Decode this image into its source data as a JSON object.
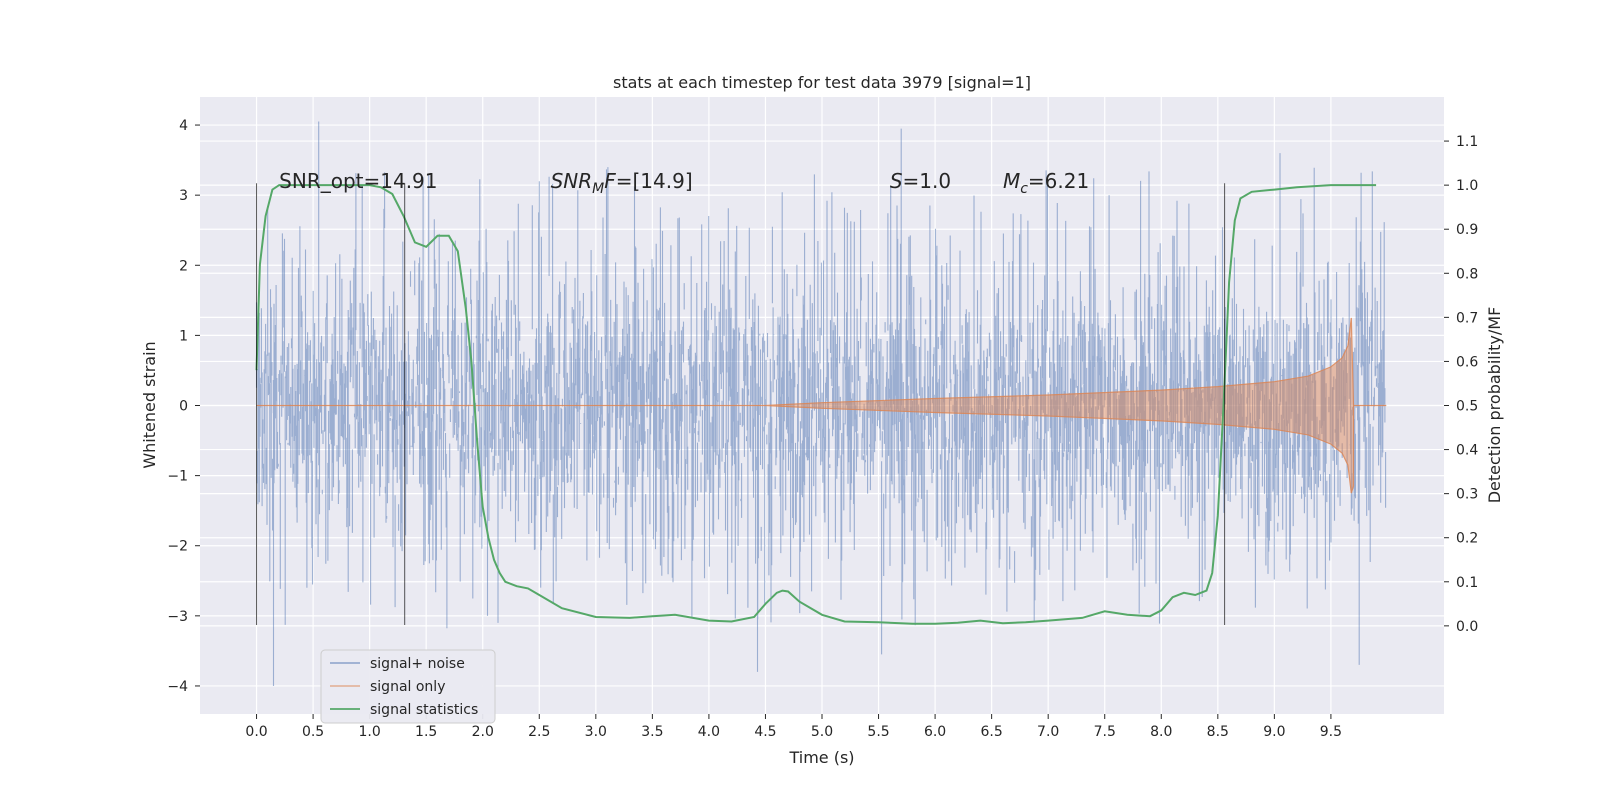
{
  "chart_data": {
    "type": "line",
    "title": "stats at each timestep for test data 3979 [signal=1]",
    "xlabel": "Time (s)",
    "ylabel": "Whitened strain",
    "y2label": "Detection probability/MF",
    "xlim": [
      -0.5,
      10.5
    ],
    "ylim": [
      -4.4,
      4.4
    ],
    "y2lim": [
      -0.2,
      1.2
    ],
    "x_ticks": [
      0.0,
      0.5,
      1.0,
      1.5,
      2.0,
      2.5,
      3.0,
      3.5,
      4.0,
      4.5,
      5.0,
      5.5,
      6.0,
      6.5,
      7.0,
      7.5,
      8.0,
      8.5,
      9.0,
      9.5
    ],
    "x_tick_labels": [
      "0.0",
      "0.5",
      "1.0",
      "1.5",
      "2.0",
      "2.5",
      "3.0",
      "3.5",
      "4.0",
      "4.5",
      "5.0",
      "5.5",
      "6.0",
      "6.5",
      "7.0",
      "7.5",
      "8.0",
      "8.5",
      "9.0",
      "9.5"
    ],
    "y_ticks": [
      4,
      3,
      2,
      1,
      0,
      -1,
      -2,
      -3,
      -4
    ],
    "y_tick_labels": [
      "4",
      "3",
      "2",
      "1",
      "0",
      "−1",
      "−2",
      "−3",
      "−4"
    ],
    "y2_ticks": [
      1.1,
      1.0,
      0.9,
      0.8,
      0.7,
      0.6,
      0.5,
      0.4,
      0.3,
      0.2,
      0.1,
      0.0
    ],
    "y2_tick_labels": [
      "1.1",
      "1.0",
      "0.9",
      "0.8",
      "0.7",
      "0.6",
      "0.5",
      "0.4",
      "0.3",
      "0.2",
      "0.1",
      "0.0"
    ],
    "grid": true,
    "legend_position": "lower-left",
    "annotations": [
      {
        "text": "SNR_opt=14.91",
        "x": 0.2,
        "y": 3.2
      },
      {
        "text": "SNR_MF=[14.9]",
        "x": 2.6,
        "y": 3.2
      },
      {
        "text": "S=1.0",
        "x": 5.6,
        "y": 3.2
      },
      {
        "text": "M_c=6.21",
        "x": 6.6,
        "y": 3.2
      }
    ],
    "vertical_markers": [
      {
        "x": 0.0,
        "y_range": [
          -3.13,
          3.17
        ]
      },
      {
        "x": 1.31,
        "y_range": [
          -3.13,
          3.17
        ]
      },
      {
        "x": 8.56,
        "y_range": [
          -3.13,
          3.17
        ]
      }
    ],
    "series": [
      {
        "name": "signal+ noise",
        "axis": "left",
        "color": "#4c72b0",
        "x_range": [
          0.0,
          9.99
        ],
        "band_typical": [
          -1.3,
          1.3
        ],
        "notable_peaks": [
          {
            "x": 0.55,
            "y": 4.05
          },
          {
            "x": 5.7,
            "y": 3.95
          },
          {
            "x": 9.05,
            "y": 3.6
          },
          {
            "x": 0.15,
            "y": -4.0
          },
          {
            "x": 4.43,
            "y": -3.8
          },
          {
            "x": 9.75,
            "y": -3.7
          }
        ]
      },
      {
        "name": "signal only",
        "axis": "left",
        "color": "#dd8452",
        "x_range": [
          0.0,
          9.99
        ],
        "envelope": {
          "x": [
            4.5,
            5.0,
            6.0,
            7.0,
            8.0,
            8.5,
            9.0,
            9.3,
            9.5,
            9.6,
            9.65,
            9.68,
            9.7
          ],
          "amplitude": [
            0.0,
            0.04,
            0.1,
            0.15,
            0.22,
            0.27,
            0.34,
            0.42,
            0.55,
            0.68,
            0.85,
            1.25,
            0.0
          ]
        }
      },
      {
        "name": "signal statistics",
        "axis": "right",
        "color": "#55a868",
        "x": [
          0.0,
          0.03,
          0.08,
          0.14,
          0.2,
          0.3,
          0.5,
          0.8,
          1.0,
          1.1,
          1.2,
          1.3,
          1.4,
          1.5,
          1.6,
          1.7,
          1.78,
          1.85,
          1.9,
          1.95,
          2.0,
          2.05,
          2.1,
          2.15,
          2.2,
          2.3,
          2.4,
          2.5,
          2.7,
          3.0,
          3.3,
          3.5,
          3.7,
          4.0,
          4.2,
          4.4,
          4.5,
          4.6,
          4.65,
          4.7,
          4.8,
          5.0,
          5.2,
          5.5,
          5.8,
          6.0,
          6.2,
          6.4,
          6.6,
          6.8,
          7.0,
          7.3,
          7.5,
          7.7,
          7.9,
          8.0,
          8.1,
          8.2,
          8.3,
          8.4,
          8.45,
          8.5,
          8.55,
          8.6,
          8.65,
          8.7,
          8.8,
          9.0,
          9.2,
          9.5,
          9.7,
          9.9
        ],
        "y": [
          0.58,
          0.82,
          0.93,
          0.99,
          1.0,
          1.0,
          1.0,
          1.0,
          1.0,
          0.995,
          0.98,
          0.93,
          0.87,
          0.86,
          0.885,
          0.885,
          0.85,
          0.72,
          0.6,
          0.42,
          0.27,
          0.2,
          0.15,
          0.12,
          0.1,
          0.09,
          0.085,
          0.07,
          0.04,
          0.02,
          0.018,
          0.022,
          0.025,
          0.012,
          0.01,
          0.02,
          0.05,
          0.075,
          0.08,
          0.078,
          0.055,
          0.025,
          0.01,
          0.008,
          0.005,
          0.005,
          0.007,
          0.012,
          0.006,
          0.008,
          0.012,
          0.018,
          0.033,
          0.025,
          0.022,
          0.035,
          0.065,
          0.075,
          0.07,
          0.08,
          0.12,
          0.25,
          0.5,
          0.78,
          0.92,
          0.97,
          0.985,
          0.99,
          0.995,
          1.0,
          1.0,
          1.0
        ]
      }
    ]
  }
}
